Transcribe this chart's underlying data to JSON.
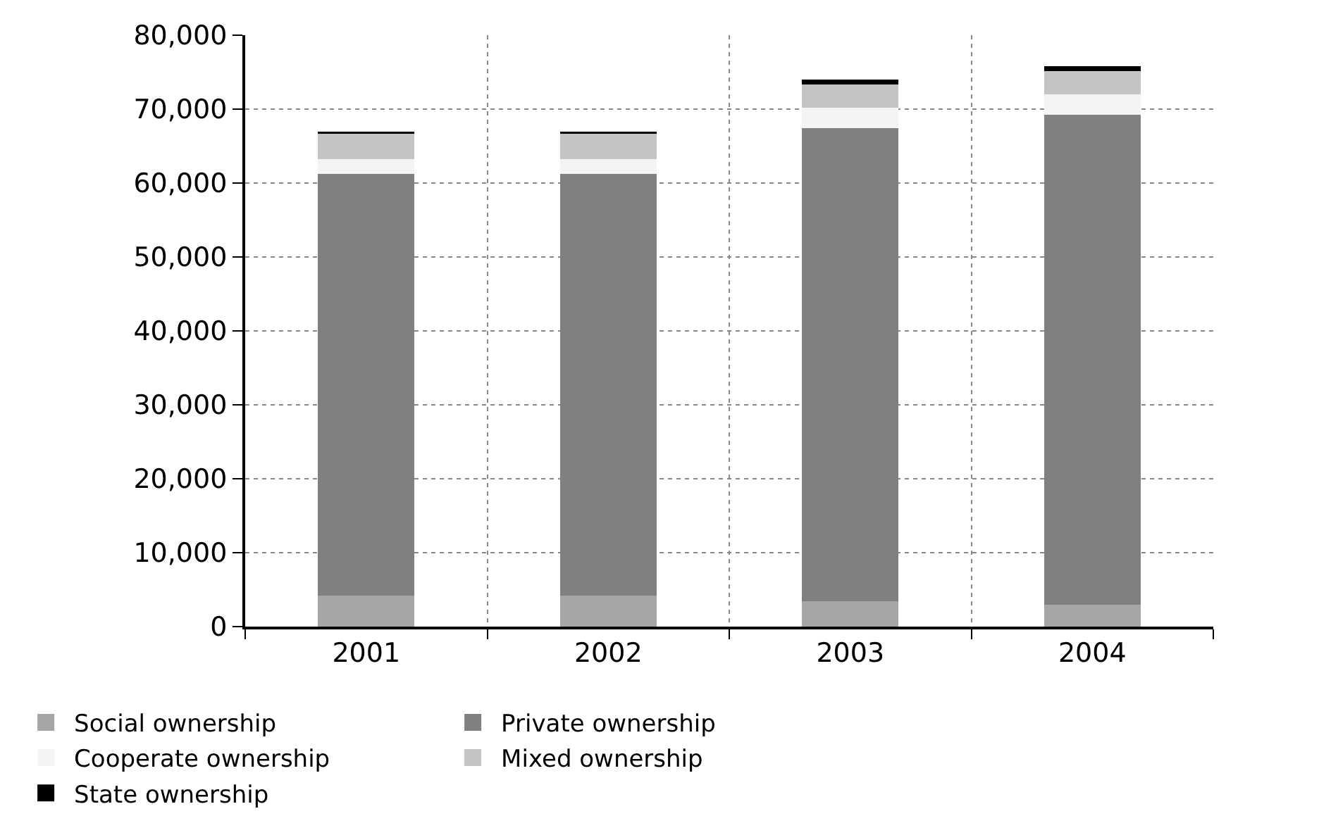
{
  "chart_data": {
    "type": "bar",
    "stacked": true,
    "categories": [
      "2001",
      "2002",
      "2003",
      "2004"
    ],
    "series": [
      {
        "name": "Social ownership",
        "color": "#a6a6a6",
        "values": [
          4200,
          4200,
          3400,
          3000
        ]
      },
      {
        "name": "Private ownership",
        "color": "#808080",
        "values": [
          57000,
          57000,
          64000,
          66200
        ]
      },
      {
        "name": "Cooperate ownership",
        "color": "#f4f4f4",
        "values": [
          2000,
          2000,
          2800,
          2800
        ]
      },
      {
        "name": "Mixed ownership",
        "color": "#c4c4c4",
        "values": [
          3500,
          3500,
          3100,
          3100
        ]
      },
      {
        "name": "State ownership",
        "color": "#000000",
        "values": [
          300,
          300,
          700,
          700
        ]
      }
    ],
    "ylim": [
      0,
      80000
    ],
    "yticks": [
      {
        "value": 0,
        "label": "0"
      },
      {
        "value": 10000,
        "label": "10,000"
      },
      {
        "value": 20000,
        "label": "20,000"
      },
      {
        "value": 30000,
        "label": "30,000"
      },
      {
        "value": 40000,
        "label": "40,000"
      },
      {
        "value": 50000,
        "label": "50,000"
      },
      {
        "value": 60000,
        "label": "60,000"
      },
      {
        "value": 70000,
        "label": "70,000"
      },
      {
        "value": 80000,
        "label": "80,000"
      }
    ],
    "grid": true,
    "legend": "bottom"
  }
}
